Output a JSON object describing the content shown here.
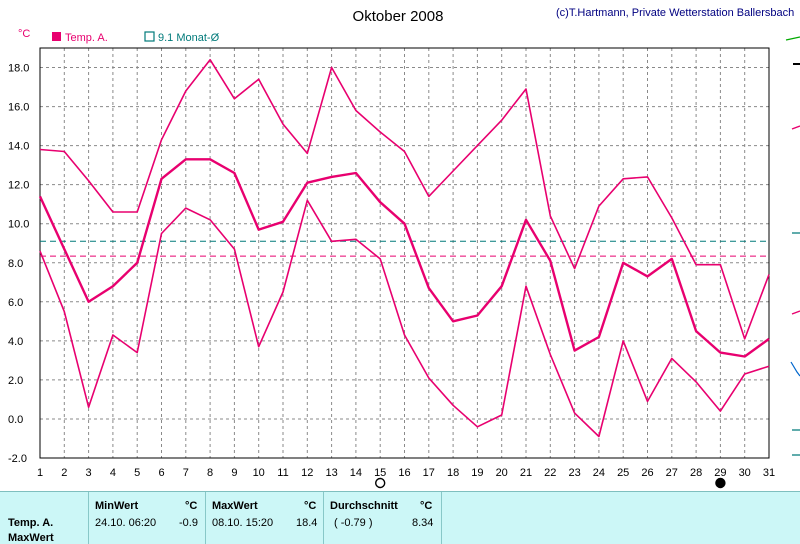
{
  "chart_data": {
    "type": "line",
    "title": "Oktober 2008",
    "credit": "(c)T.Hartmann, Private Wetterstation Ballersbach",
    "y_unit": "°C",
    "ylim": [
      -2.0,
      19.0
    ],
    "y_ticks": [
      "-2.0",
      "0.0",
      "2.0",
      "4.0",
      "6.0",
      "8.0",
      "10.0",
      "12.0",
      "14.0",
      "16.0",
      "18.0"
    ],
    "x": [
      1,
      2,
      3,
      4,
      5,
      6,
      7,
      8,
      9,
      10,
      11,
      12,
      13,
      14,
      15,
      16,
      17,
      18,
      19,
      20,
      21,
      22,
      23,
      24,
      25,
      26,
      27,
      28,
      29,
      30,
      31
    ],
    "grid": true,
    "legend": [
      {
        "label": "Temp. A.",
        "color": "#e8006f",
        "marker": "filled-square"
      },
      {
        "label": "9.1 Monat-Ø",
        "color": "#007a7a",
        "marker": "open-square"
      }
    ],
    "series": [
      {
        "name": "Temp. A.",
        "color": "#e8006f",
        "width": 2.4,
        "values": [
          11.4,
          8.7,
          6.0,
          6.8,
          8.0,
          12.3,
          13.3,
          13.3,
          12.6,
          9.7,
          10.1,
          12.1,
          12.4,
          12.6,
          11.1,
          10.0,
          6.7,
          5.0,
          5.3,
          6.8,
          10.2,
          8.1,
          3.5,
          4.2,
          8.0,
          7.3,
          8.2,
          4.5,
          3.4,
          3.2,
          4.1
        ]
      },
      {
        "color": "#e8006f",
        "width": 1.6,
        "values": [
          13.8,
          13.7,
          12.2,
          10.6,
          10.6,
          14.3,
          16.8,
          18.4,
          16.4,
          17.4,
          15.1,
          13.6,
          18.0,
          15.8,
          14.7,
          13.7,
          11.4,
          12.7,
          14.0,
          15.3,
          16.9,
          10.4,
          7.7,
          10.9,
          12.3,
          12.4,
          10.3,
          7.9,
          7.9,
          4.1,
          7.4
        ]
      },
      {
        "color": "#e8006f",
        "width": 1.6,
        "values": [
          8.6,
          5.5,
          0.6,
          4.3,
          3.4,
          9.5,
          10.8,
          10.2,
          8.7,
          3.7,
          6.5,
          11.2,
          9.1,
          9.2,
          8.2,
          4.3,
          2.1,
          0.7,
          -0.4,
          0.2,
          6.8,
          3.3,
          0.3,
          -0.9,
          4.0,
          0.9,
          3.1,
          1.9,
          0.4,
          2.3,
          2.7
        ]
      }
    ],
    "reference_lines": [
      {
        "value": 9.1,
        "color": "#007a7a",
        "style": "dashed"
      },
      {
        "value": 8.34,
        "color": "#e8006f",
        "style": "dashed"
      }
    ],
    "x_markers": [
      {
        "day": 15,
        "symbol": "open-circle"
      },
      {
        "day": 29,
        "symbol": "filled-circle"
      }
    ]
  },
  "stats": {
    "row_label": "Temp. A.",
    "row_label2": "MaxWert",
    "min_header": "MinWert",
    "max_header": "MaxWert",
    "avg_header": "Durchschnitt",
    "unit": "°C",
    "min_time": "24.10.  06:20",
    "min_value": "-0.9",
    "max_time": "08.10.  15:20",
    "max_value": "18.4",
    "avg_paren": "( -0.79 )",
    "avg_value": "8.34"
  }
}
